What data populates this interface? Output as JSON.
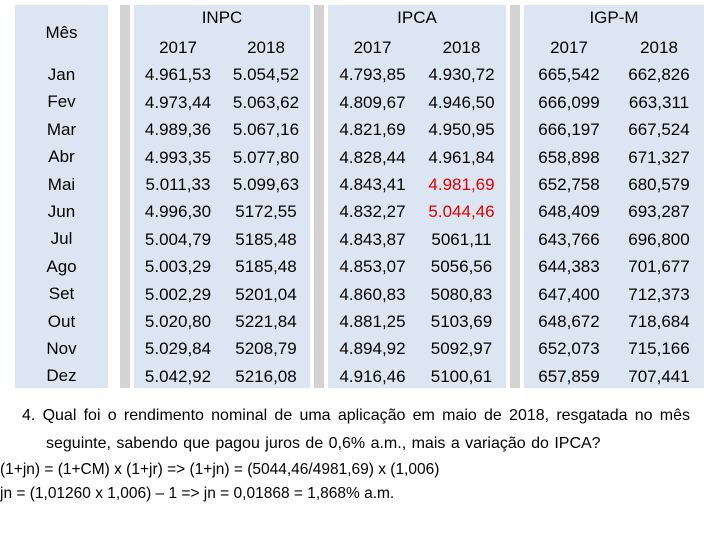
{
  "table": {
    "month_header": "Mês",
    "months": [
      "Jan",
      "Fev",
      "Mar",
      "Abr",
      "Mai",
      "Jun",
      "Jul",
      "Ago",
      "Set",
      "Out",
      "Nov",
      "Dez"
    ],
    "groups": [
      {
        "name": "INPC",
        "years": [
          "2017",
          "2018"
        ],
        "values_2017": [
          "4.961,53",
          "4.973,44",
          "4.989,36",
          "4.993,35",
          "5.011,33",
          "4.996,30",
          "5.004,79",
          "5.003,29",
          "5.002,29",
          "5.020,80",
          "5.029,84",
          "5.042,92"
        ],
        "values_2018": [
          "5.054,52",
          "5.063,62",
          "5.067,16",
          "5.077,80",
          "5.099,63",
          "5172,55",
          "5185,48",
          "5185,48",
          "5201,04",
          "5221,84",
          "5208,79",
          "5216,08"
        ]
      },
      {
        "name": "IPCA",
        "years": [
          "2017",
          "2018"
        ],
        "values_2017": [
          "4.793,85",
          "4.809,67",
          "4.821,69",
          "4.828,44",
          "4.843,41",
          "4.832,27",
          "4.843,87",
          "4.853,07",
          "4.860,83",
          "4.881,25",
          "4.894,92",
          "4.916,46"
        ],
        "values_2018": [
          "4.930,72",
          "4.946,50",
          "4.950,95",
          "4.961,84",
          "4.981,69",
          "5.044,46",
          "5061,11",
          "5056,56",
          "5080,83",
          "5103,69",
          "5092,97",
          "5100,61"
        ]
      },
      {
        "name": "IGP-M",
        "years": [
          "2017",
          "2018"
        ],
        "values_2017": [
          "665,542",
          "666,099",
          "666,197",
          "658,898",
          "652,758",
          "648,409",
          "643,766",
          "644,383",
          "647,400",
          "648,672",
          "652,073",
          "657,859"
        ],
        "values_2018": [
          "662,826",
          "663,311",
          "667,524",
          "671,327",
          "680,579",
          "693,287",
          "696,800",
          "701,677",
          "712,373",
          "718,684",
          "715,166",
          "707,441"
        ]
      }
    ],
    "highlight_color": "#e00000"
  },
  "question": {
    "text": "4. Qual foi o rendimento nominal de uma aplicação em maio de 2018, resgatada no mês seguinte, sabendo que pagou juros de 0,6% a.m., mais a variação do IPCA?",
    "line1": "(1+jn) = (1+CM) x (1+jr) => (1+jn) = (5044,46/4981,69) x (1,006)",
    "line2": "jn =  (1,01260 x 1,006) – 1   =>   jn = 0,01868  =  1,868% a.m."
  }
}
